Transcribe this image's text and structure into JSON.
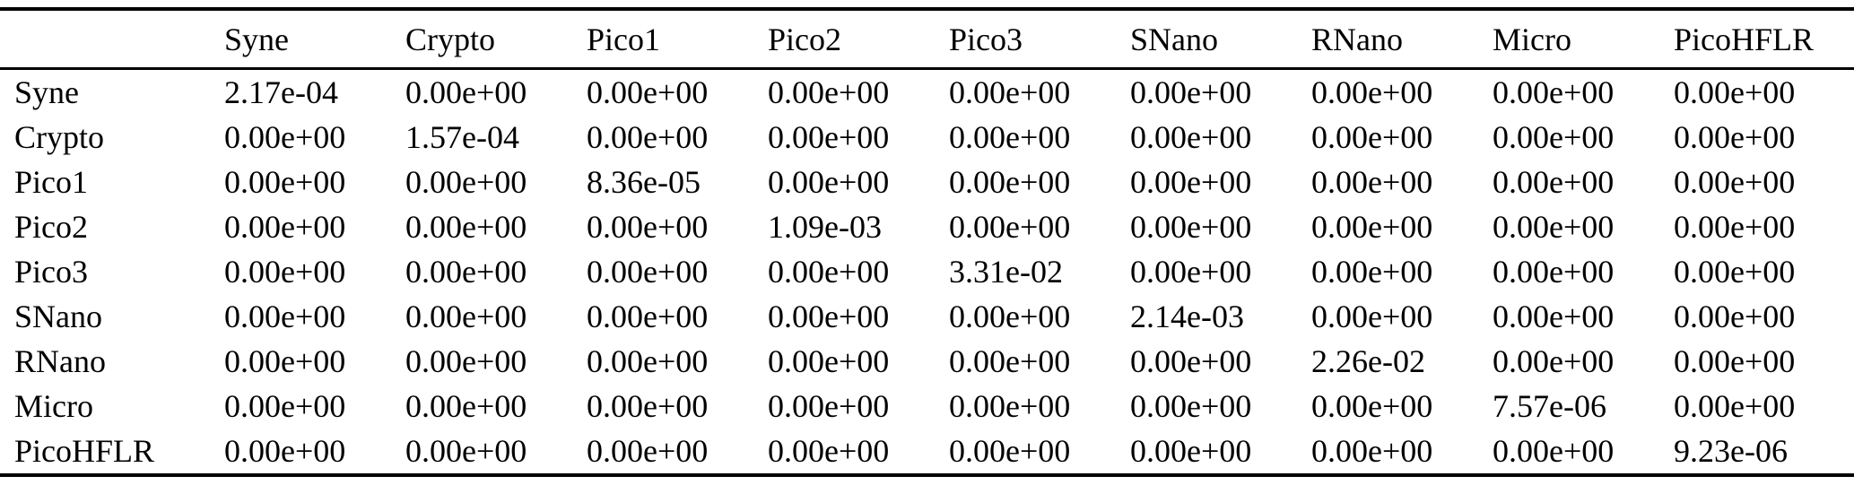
{
  "colors": {
    "background": "#ffffff",
    "text": "#000000",
    "rule": "#000000"
  },
  "table": {
    "corner_label": "",
    "column_headers": [
      "Syne",
      "Crypto",
      "Pico1",
      "Pico2",
      "Pico3",
      "SNano",
      "RNano",
      "Micro",
      "PicoHFLR"
    ],
    "rows": [
      {
        "label": "Syne",
        "values": [
          "2.17e-04",
          "0.00e+00",
          "0.00e+00",
          "0.00e+00",
          "0.00e+00",
          "0.00e+00",
          "0.00e+00",
          "0.00e+00",
          "0.00e+00"
        ]
      },
      {
        "label": "Crypto",
        "values": [
          "0.00e+00",
          "1.57e-04",
          "0.00e+00",
          "0.00e+00",
          "0.00e+00",
          "0.00e+00",
          "0.00e+00",
          "0.00e+00",
          "0.00e+00"
        ]
      },
      {
        "label": "Pico1",
        "values": [
          "0.00e+00",
          "0.00e+00",
          "8.36e-05",
          "0.00e+00",
          "0.00e+00",
          "0.00e+00",
          "0.00e+00",
          "0.00e+00",
          "0.00e+00"
        ]
      },
      {
        "label": "Pico2",
        "values": [
          "0.00e+00",
          "0.00e+00",
          "0.00e+00",
          "1.09e-03",
          "0.00e+00",
          "0.00e+00",
          "0.00e+00",
          "0.00e+00",
          "0.00e+00"
        ]
      },
      {
        "label": "Pico3",
        "values": [
          "0.00e+00",
          "0.00e+00",
          "0.00e+00",
          "0.00e+00",
          "3.31e-02",
          "0.00e+00",
          "0.00e+00",
          "0.00e+00",
          "0.00e+00"
        ]
      },
      {
        "label": "SNano",
        "values": [
          "0.00e+00",
          "0.00e+00",
          "0.00e+00",
          "0.00e+00",
          "0.00e+00",
          "2.14e-03",
          "0.00e+00",
          "0.00e+00",
          "0.00e+00"
        ]
      },
      {
        "label": "RNano",
        "values": [
          "0.00e+00",
          "0.00e+00",
          "0.00e+00",
          "0.00e+00",
          "0.00e+00",
          "0.00e+00",
          "2.26e-02",
          "0.00e+00",
          "0.00e+00"
        ]
      },
      {
        "label": "Micro",
        "values": [
          "0.00e+00",
          "0.00e+00",
          "0.00e+00",
          "0.00e+00",
          "0.00e+00",
          "0.00e+00",
          "0.00e+00",
          "7.57e-06",
          "0.00e+00"
        ]
      },
      {
        "label": "PicoHFLR",
        "values": [
          "0.00e+00",
          "0.00e+00",
          "0.00e+00",
          "0.00e+00",
          "0.00e+00",
          "0.00e+00",
          "0.00e+00",
          "0.00e+00",
          "9.23e-06"
        ]
      }
    ]
  }
}
